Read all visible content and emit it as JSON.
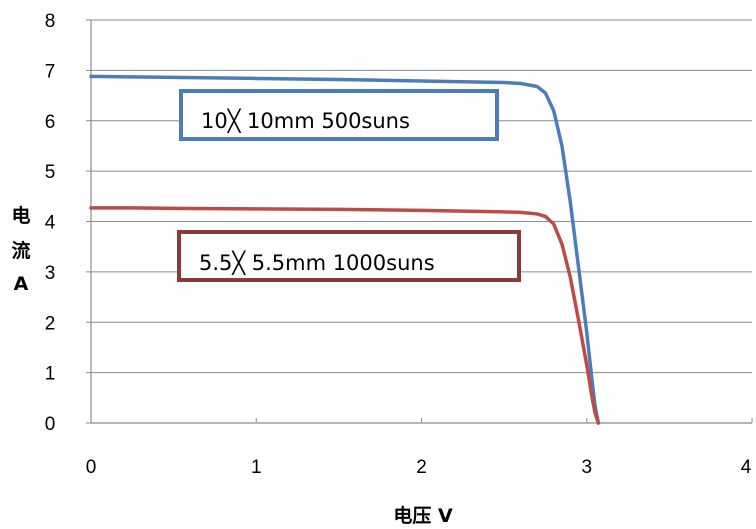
{
  "chart_data": {
    "type": "line",
    "title": "",
    "xlabel": "电压 V",
    "ylabel_lines": [
      "电",
      "流",
      "A"
    ],
    "xlim": [
      0,
      4
    ],
    "ylim": [
      0,
      8
    ],
    "x_ticks": [
      "0",
      "1",
      "2",
      "3",
      "4"
    ],
    "y_ticks": [
      "0",
      "1",
      "2",
      "3",
      "4",
      "5",
      "6",
      "7",
      "8"
    ],
    "grid": "horizontal",
    "series": [
      {
        "name": "10×10mm 500suns",
        "legend_label": "10╳ 10mm   500suns",
        "color": "#4a7ebb",
        "border_color": "#4a7ebb",
        "x": [
          0,
          0.25,
          0.5,
          1.0,
          1.5,
          2.0,
          2.5,
          2.6,
          2.7,
          2.75,
          2.8,
          2.85,
          2.9,
          2.95,
          3.0,
          3.03,
          3.05,
          3.07
        ],
        "y": [
          6.88,
          6.87,
          6.86,
          6.84,
          6.82,
          6.79,
          6.76,
          6.74,
          6.68,
          6.55,
          6.2,
          5.5,
          4.4,
          3.1,
          1.8,
          0.9,
          0.35,
          0
        ]
      },
      {
        "name": "5.5×5.5mm 1000suns",
        "legend_label": "5.5╳ 5.5mm   1000suns",
        "color": "#be4b48",
        "border_color": "#8b3a3a",
        "x": [
          0,
          0.25,
          0.5,
          1.0,
          1.5,
          2.0,
          2.5,
          2.6,
          2.7,
          2.75,
          2.8,
          2.85,
          2.9,
          2.95,
          3.0,
          3.03,
          3.05,
          3.07
        ],
        "y": [
          4.27,
          4.27,
          4.26,
          4.25,
          4.24,
          4.22,
          4.19,
          4.18,
          4.15,
          4.1,
          3.95,
          3.55,
          2.9,
          2.05,
          1.15,
          0.55,
          0.2,
          0
        ]
      }
    ]
  }
}
